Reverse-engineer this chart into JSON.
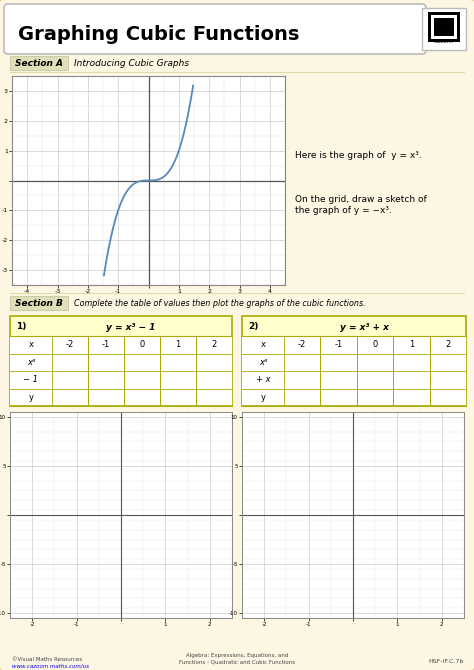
{
  "title": "Graphing Cubic Functions",
  "bg_color": "#fdf6e3",
  "border_color": "#e8c87a",
  "section_a_label": "Section A",
  "section_a_title": "Introducing Cubic Graphs",
  "section_b_label": "Section B",
  "section_b_title": "Complete the table of values then plot the graphs of the cubic functions.",
  "graph1_text1": "Here is the graph of  y = x³.",
  "graph1_text2": "On the grid, draw a sketch of\nthe graph of y = −x³.",
  "table1_label": "1)",
  "table1_header": "y = x³ − 1",
  "table2_label": "2)",
  "table2_header": "y = x³ + x",
  "table1_rows": [
    "x³",
    "− 1",
    "y"
  ],
  "table2_rows": [
    "x³",
    "+ x",
    "y"
  ],
  "footer_left1": "©Visual Maths Resources",
  "footer_left2": "www.cazoom maths.com/us",
  "footer_center": "Algebra: Expressions, Equations, and\nFunctions - Quadratic and Cubic Functions",
  "footer_right": "HSF-IF.C.7b",
  "grid_color": "#cccccc",
  "minor_grid_color": "#e0e0e0",
  "axis_color": "#555555",
  "curve_color": "#5588bb",
  "table_bg": "#ffffcc",
  "table_border": "#aaaa00",
  "table_row_bg": "#ffffff",
  "section_label_bg": "#e0e0b8",
  "white": "#ffffff"
}
